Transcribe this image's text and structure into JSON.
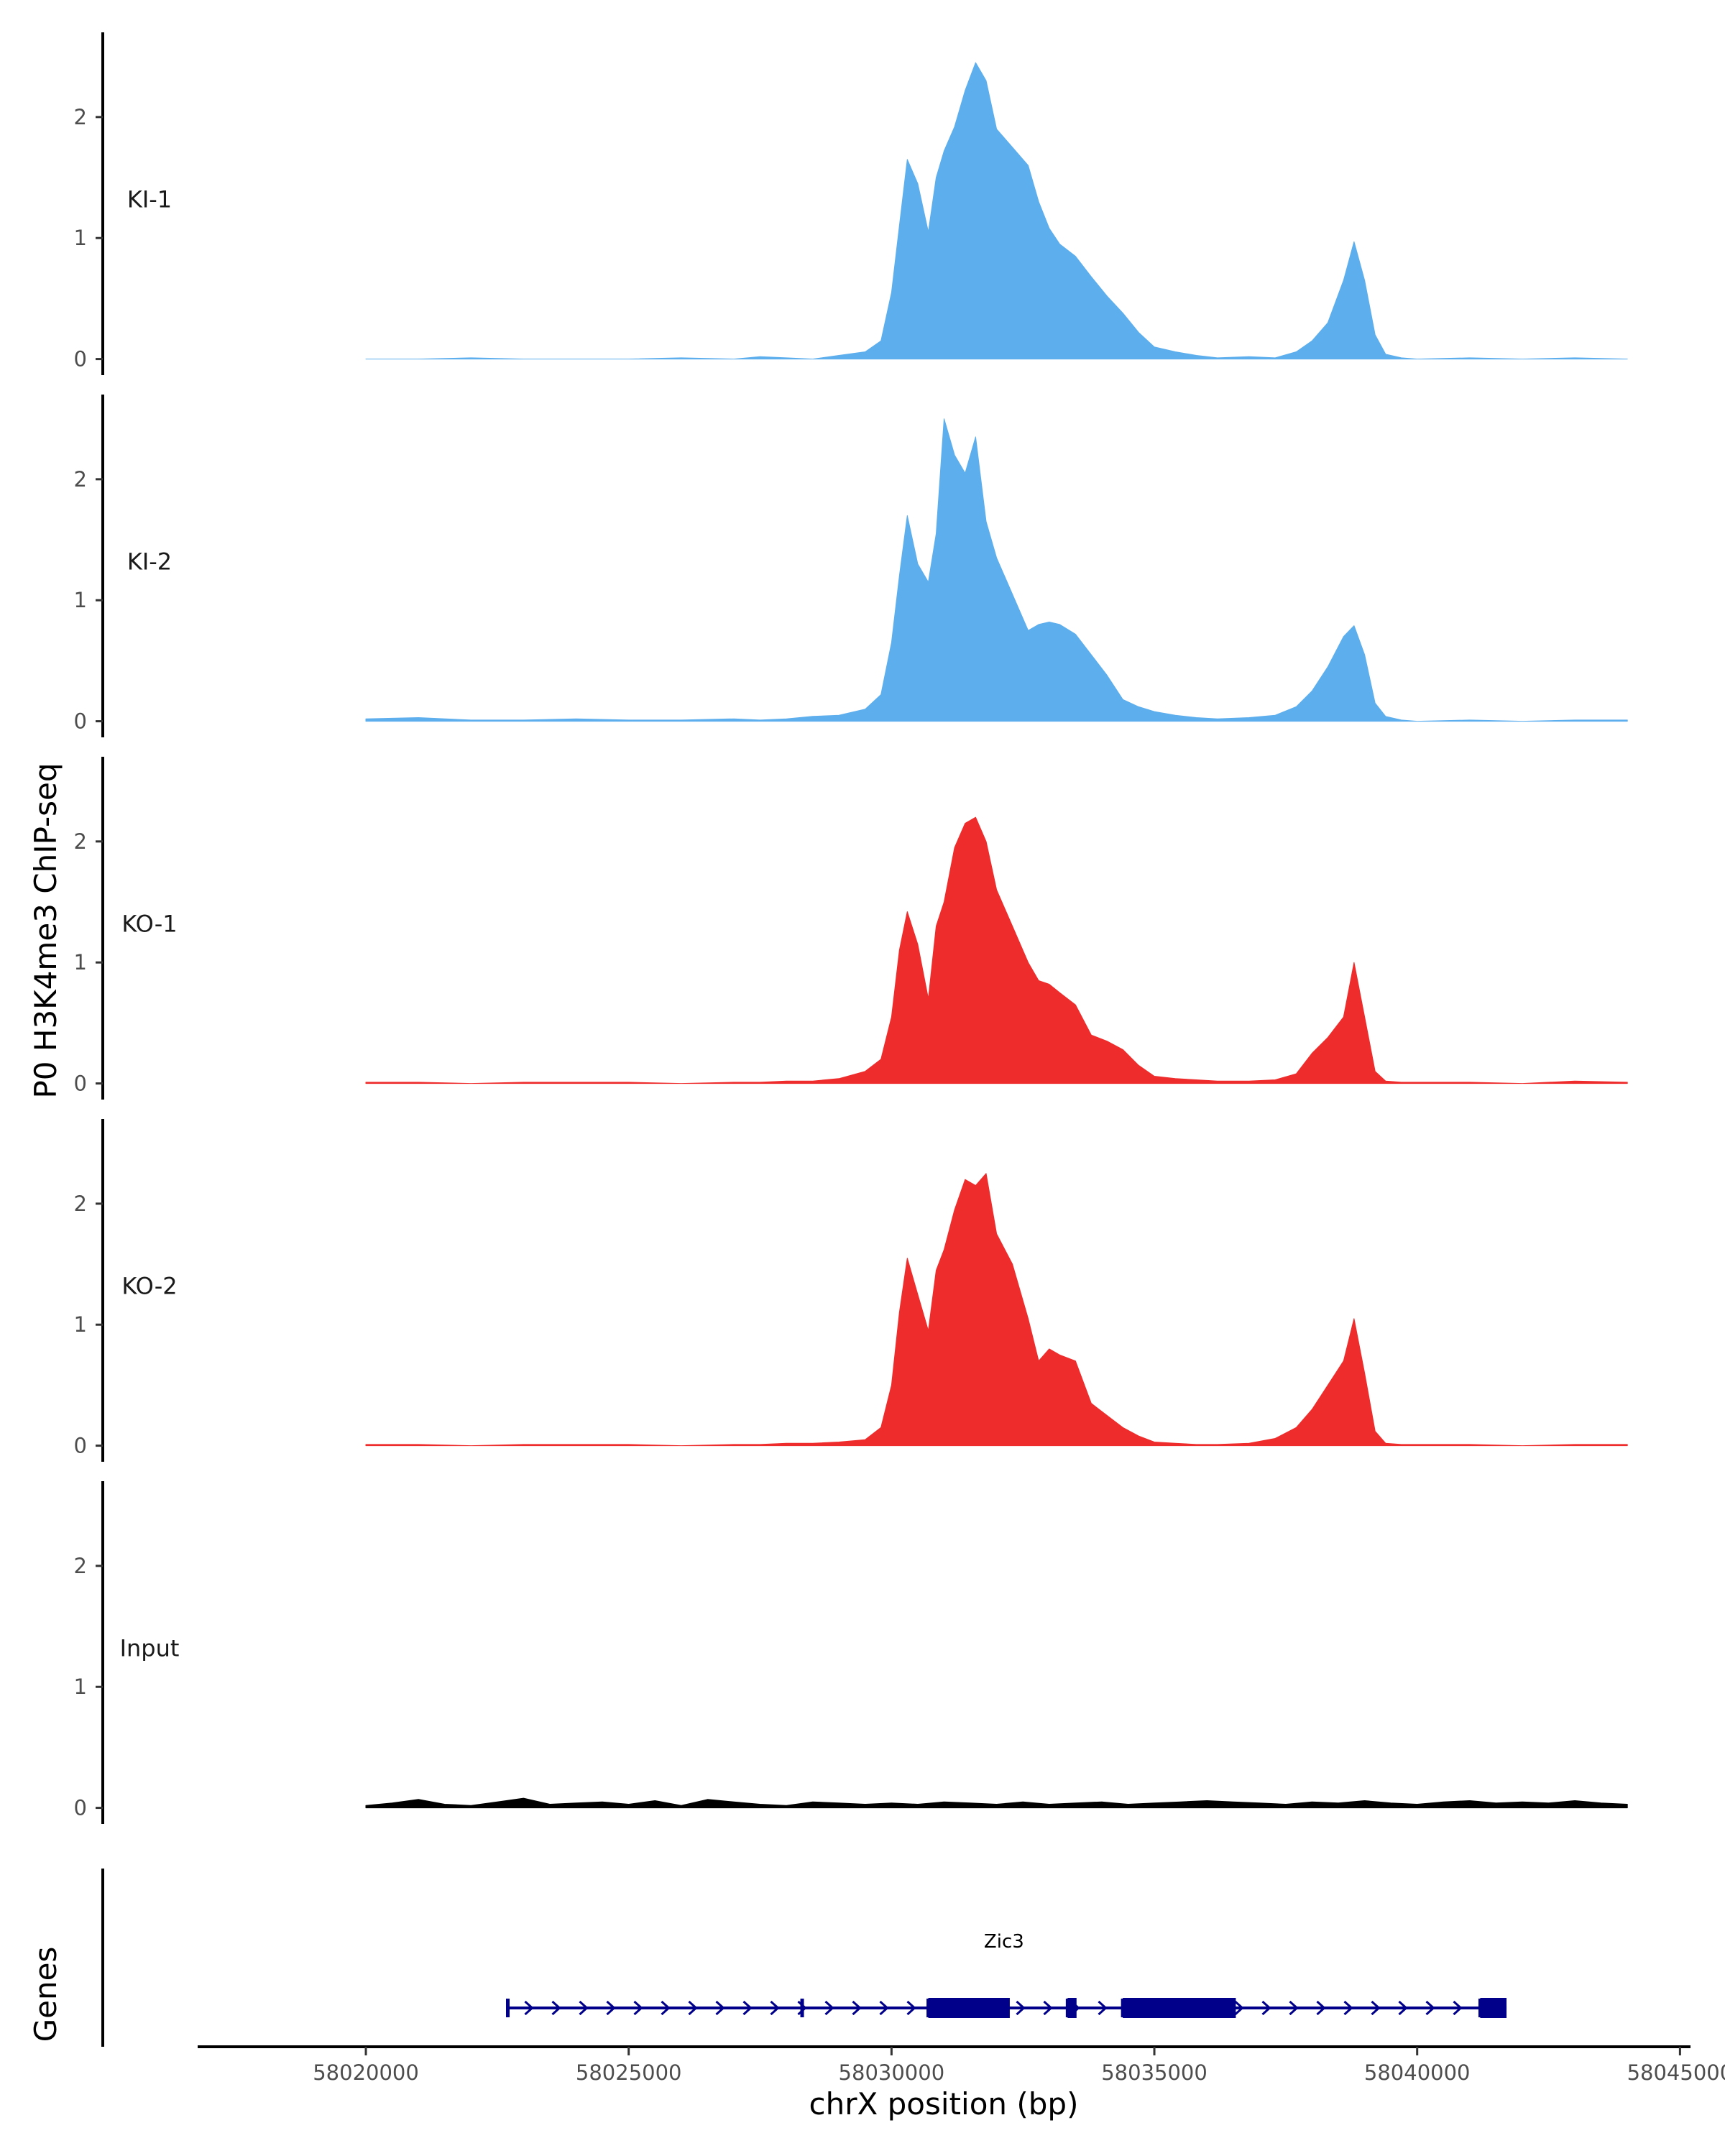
{
  "chart_data": {
    "type": "area",
    "title": "",
    "ylabel": "P0 H3K4me3 ChIP-seq",
    "xlabel": "chrX position (bp)",
    "genes_label": "Genes",
    "chromosome": "chrX",
    "xlim": [
      58016800,
      58045200
    ],
    "ylim": [
      -0.05,
      2.7
    ],
    "x_ticks": [
      58020000,
      58025000,
      58030000,
      58035000,
      58040000,
      58045000
    ],
    "x_tick_labels": [
      "58020000",
      "58025000",
      "58030000",
      "58035000",
      "58040000",
      "58045000"
    ],
    "y_ticks": [
      0,
      1,
      2
    ],
    "y_tick_labels": [
      "0",
      "1",
      "2"
    ],
    "colors": {
      "KI": "#5daeed",
      "KO": "#ee2c2c",
      "Input": "#000000",
      "gene": "#00008b"
    },
    "series": [
      {
        "name": "KI-1",
        "color": "#5daeed",
        "x": [
          58020000,
          58021000,
          58022000,
          58023000,
          58024000,
          58025000,
          58026000,
          58027000,
          58027500,
          58028000,
          58028500,
          58029000,
          58029500,
          58029800,
          58030000,
          58030150,
          58030300,
          58030500,
          58030700,
          58030850,
          58031000,
          58031200,
          58031400,
          58031600,
          58031800,
          58032000,
          58032300,
          58032600,
          58032800,
          58033000,
          58033200,
          58033500,
          58033800,
          58034100,
          58034400,
          58034700,
          58035000,
          58035400,
          58035800,
          58036200,
          58036800,
          58037300,
          58037700,
          58038000,
          58038300,
          58038600,
          58038800,
          58039000,
          58039200,
          58039400,
          58039700,
          58040000,
          58041000,
          58042000,
          58043000,
          58044000
        ],
        "values": [
          0,
          0,
          0.01,
          0,
          0,
          0,
          0.01,
          0,
          0.02,
          0.01,
          0,
          0.03,
          0.06,
          0.15,
          0.55,
          1.1,
          1.65,
          1.45,
          1.05,
          1.5,
          1.72,
          1.92,
          2.22,
          2.45,
          2.3,
          1.9,
          1.75,
          1.6,
          1.3,
          1.08,
          0.95,
          0.85,
          0.68,
          0.52,
          0.38,
          0.22,
          0.1,
          0.06,
          0.03,
          0.01,
          0.02,
          0.01,
          0.06,
          0.15,
          0.3,
          0.65,
          0.97,
          0.65,
          0.2,
          0.04,
          0.01,
          0,
          0.01,
          0,
          0.01,
          0
        ]
      },
      {
        "name": "KI-2",
        "color": "#5daeed",
        "x": [
          58020000,
          58021000,
          58022000,
          58023000,
          58024000,
          58025000,
          58026000,
          58027000,
          58027500,
          58028000,
          58028500,
          58029000,
          58029500,
          58029800,
          58030000,
          58030150,
          58030300,
          58030500,
          58030700,
          58030850,
          58031000,
          58031200,
          58031400,
          58031600,
          58031800,
          58032000,
          58032300,
          58032600,
          58032800,
          58033000,
          58033200,
          58033500,
          58033800,
          58034100,
          58034400,
          58034700,
          58035000,
          58035400,
          58035800,
          58036200,
          58036800,
          58037300,
          58037700,
          58038000,
          58038300,
          58038600,
          58038800,
          58039000,
          58039200,
          58039400,
          58039700,
          58040000,
          58041000,
          58042000,
          58043000,
          58044000
        ],
        "values": [
          0.02,
          0.03,
          0.01,
          0.01,
          0.02,
          0.01,
          0.01,
          0.02,
          0.01,
          0.02,
          0.04,
          0.05,
          0.1,
          0.22,
          0.65,
          1.2,
          1.7,
          1.3,
          1.15,
          1.55,
          2.5,
          2.2,
          2.05,
          2.35,
          1.65,
          1.35,
          1.05,
          0.75,
          0.8,
          0.82,
          0.8,
          0.72,
          0.55,
          0.38,
          0.18,
          0.12,
          0.08,
          0.05,
          0.03,
          0.02,
          0.03,
          0.05,
          0.12,
          0.25,
          0.45,
          0.7,
          0.79,
          0.55,
          0.15,
          0.04,
          0.01,
          0,
          0.01,
          0,
          0.01,
          0.01
        ]
      },
      {
        "name": "KO-1",
        "color": "#ee2c2c",
        "x": [
          58020000,
          58021000,
          58022000,
          58023000,
          58024000,
          58025000,
          58026000,
          58027000,
          58027500,
          58028000,
          58028500,
          58029000,
          58029500,
          58029800,
          58030000,
          58030150,
          58030300,
          58030500,
          58030700,
          58030850,
          58031000,
          58031200,
          58031400,
          58031600,
          58031800,
          58032000,
          58032300,
          58032600,
          58032800,
          58033000,
          58033200,
          58033500,
          58033800,
          58034100,
          58034400,
          58034700,
          58035000,
          58035400,
          58035800,
          58036200,
          58036800,
          58037300,
          58037700,
          58038000,
          58038300,
          58038600,
          58038800,
          58039000,
          58039200,
          58039400,
          58039700,
          58040000,
          58041000,
          58042000,
          58043000,
          58044000
        ],
        "values": [
          0.01,
          0.01,
          0,
          0.01,
          0.01,
          0.01,
          0,
          0.01,
          0.01,
          0.02,
          0.02,
          0.04,
          0.1,
          0.2,
          0.55,
          1.1,
          1.42,
          1.15,
          0.7,
          1.3,
          1.5,
          1.95,
          2.15,
          2.2,
          2.0,
          1.6,
          1.3,
          1.0,
          0.85,
          0.82,
          0.75,
          0.65,
          0.4,
          0.35,
          0.28,
          0.15,
          0.06,
          0.04,
          0.03,
          0.02,
          0.02,
          0.03,
          0.08,
          0.25,
          0.38,
          0.55,
          1.0,
          0.55,
          0.1,
          0.02,
          0.01,
          0.01,
          0.01,
          0,
          0.02,
          0.01
        ]
      },
      {
        "name": "KO-2",
        "color": "#ee2c2c",
        "x": [
          58020000,
          58021000,
          58022000,
          58023000,
          58024000,
          58025000,
          58026000,
          58027000,
          58027500,
          58028000,
          58028500,
          58029000,
          58029500,
          58029800,
          58030000,
          58030150,
          58030300,
          58030500,
          58030700,
          58030850,
          58031000,
          58031200,
          58031400,
          58031600,
          58031800,
          58032000,
          58032300,
          58032600,
          58032800,
          58033000,
          58033200,
          58033500,
          58033800,
          58034100,
          58034400,
          58034700,
          58035000,
          58035400,
          58035800,
          58036200,
          58036800,
          58037300,
          58037700,
          58038000,
          58038300,
          58038600,
          58038800,
          58039000,
          58039200,
          58039400,
          58039700,
          58040000,
          58041000,
          58042000,
          58043000,
          58044000
        ],
        "values": [
          0.01,
          0.01,
          0,
          0.01,
          0.01,
          0.01,
          0,
          0.01,
          0.01,
          0.02,
          0.02,
          0.03,
          0.05,
          0.15,
          0.5,
          1.1,
          1.55,
          1.25,
          0.95,
          1.45,
          1.62,
          1.95,
          2.2,
          2.15,
          2.25,
          1.75,
          1.5,
          1.05,
          0.7,
          0.8,
          0.75,
          0.7,
          0.35,
          0.25,
          0.15,
          0.08,
          0.03,
          0.02,
          0.01,
          0.01,
          0.02,
          0.06,
          0.15,
          0.3,
          0.5,
          0.7,
          1.05,
          0.6,
          0.12,
          0.02,
          0.01,
          0.01,
          0.01,
          0,
          0.01,
          0.01
        ]
      },
      {
        "name": "Input",
        "color": "#000000",
        "x": [
          58020000,
          58020500,
          58021000,
          58021500,
          58022000,
          58022500,
          58023000,
          58023500,
          58024000,
          58024500,
          58025000,
          58025500,
          58026000,
          58026500,
          58027000,
          58027500,
          58028000,
          58028500,
          58029000,
          58029500,
          58030000,
          58030500,
          58031000,
          58031500,
          58032000,
          58032500,
          58033000,
          58033500,
          58034000,
          58034500,
          58035000,
          58035500,
          58036000,
          58036500,
          58037000,
          58037500,
          58038000,
          58038500,
          58039000,
          58039500,
          58040000,
          58040500,
          58041000,
          58041500,
          58042000,
          58042500,
          58043000,
          58043500,
          58044000
        ],
        "values": [
          0.02,
          0.04,
          0.07,
          0.03,
          0.02,
          0.05,
          0.08,
          0.03,
          0.04,
          0.05,
          0.03,
          0.06,
          0.02,
          0.07,
          0.05,
          0.03,
          0.02,
          0.05,
          0.04,
          0.03,
          0.04,
          0.03,
          0.05,
          0.04,
          0.03,
          0.05,
          0.03,
          0.04,
          0.05,
          0.03,
          0.04,
          0.05,
          0.06,
          0.05,
          0.04,
          0.03,
          0.05,
          0.04,
          0.06,
          0.04,
          0.03,
          0.05,
          0.06,
          0.04,
          0.05,
          0.04,
          0.06,
          0.04,
          0.03
        ]
      }
    ],
    "genes": [
      {
        "name": "Zic3",
        "strand": "+",
        "start": 58022700,
        "end": 58041700,
        "exons": [
          [
            58022700,
            58022760
          ],
          [
            58028300,
            58028360
          ],
          [
            58030700,
            58032250
          ],
          [
            58033350,
            58033520
          ],
          [
            58034400,
            58036550
          ],
          [
            58041200,
            58041700
          ]
        ],
        "thick_exons": [
          [
            58030700,
            58032250
          ],
          [
            58033350,
            58033520
          ],
          [
            58034400,
            58036550
          ],
          [
            58041200,
            58041700
          ]
        ]
      }
    ]
  }
}
